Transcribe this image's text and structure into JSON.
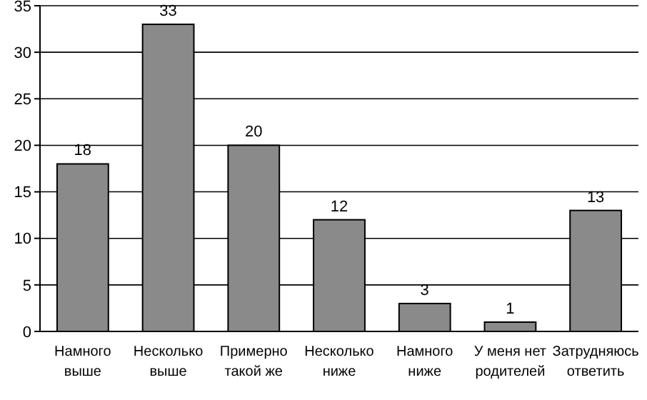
{
  "chart_data": {
    "type": "bar",
    "categories": [
      "Намного выше",
      "Несколько выше",
      "Примерно такой же",
      "Несколько ниже",
      "Намного ниже",
      "У меня нет родителей",
      "Затрудняюсь ответить"
    ],
    "values": [
      18,
      33,
      20,
      12,
      3,
      1,
      13
    ],
    "color": "#8a8a8a",
    "data_labels": true,
    "ylim": [
      0,
      35
    ],
    "yticks": [
      0,
      5,
      10,
      15,
      20,
      25,
      30,
      35
    ],
    "grid": "y"
  }
}
